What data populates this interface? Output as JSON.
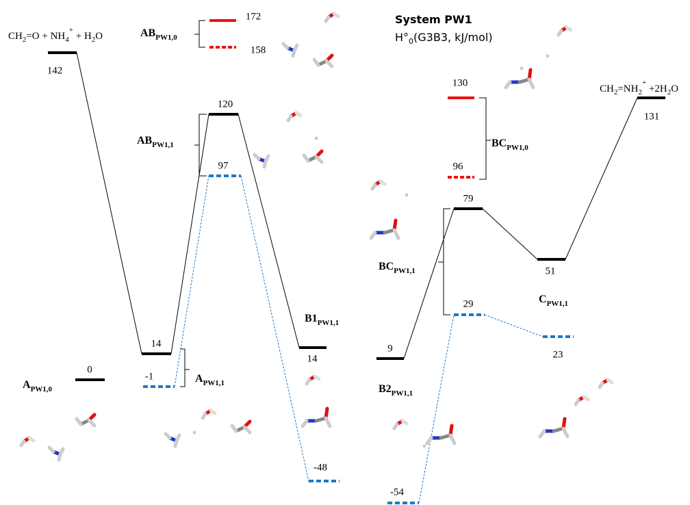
{
  "title": "System PW1",
  "subtitle": [
    {
      "t": "H°"
    },
    {
      "sub": "0"
    },
    {
      "t": "(G3B3, kJ/mol)"
    }
  ],
  "levels": [
    {
      "value": 0,
      "color": "#000000",
      "style": "solid"
    },
    {
      "value": 142,
      "color": "#000000",
      "style": "solid"
    },
    {
      "value": 14,
      "color": "#000000",
      "style": "solid"
    },
    {
      "value": -1,
      "color": "#1f77c4",
      "style": "dashed"
    },
    {
      "value": 120,
      "color": "#000000",
      "style": "solid"
    },
    {
      "value": 97,
      "color": "#1f77c4",
      "style": "dashed"
    },
    {
      "value": 14,
      "color": "#000000",
      "style": "solid"
    },
    {
      "value": -48,
      "color": "#1f77c4",
      "style": "dashed"
    },
    {
      "value": 9,
      "color": "#000000",
      "style": "solid"
    },
    {
      "value": -54,
      "color": "#1f77c4",
      "style": "dashed"
    },
    {
      "value": 79,
      "color": "#000000",
      "style": "solid"
    },
    {
      "value": 29,
      "color": "#1f77c4",
      "style": "dashed"
    },
    {
      "value": 51,
      "color": "#000000",
      "style": "solid"
    },
    {
      "value": 23,
      "color": "#1f77c4",
      "style": "dashed"
    },
    {
      "value": 131,
      "color": "#000000",
      "style": "solid"
    },
    {
      "value": 172,
      "color": "#ee1111",
      "style": "solid"
    },
    {
      "value": 158,
      "color": "#ee1111",
      "style": "dotted"
    },
    {
      "value": 130,
      "color": "#ee1111",
      "style": "solid"
    },
    {
      "value": 96,
      "color": "#ee1111",
      "style": "dotted"
    }
  ],
  "states": [
    {
      "main": "A",
      "sub": "PW1,0"
    },
    {
      "main": "A",
      "sub": "PW1,1"
    },
    {
      "main": "AB",
      "sub": "PW1,0"
    },
    {
      "main": "AB",
      "sub": "PW1,1"
    },
    {
      "main": "B1",
      "sub": "PW1,1"
    },
    {
      "main": "B2",
      "sub": "PW1,1"
    },
    {
      "main": "BC",
      "sub": "PW1,0"
    },
    {
      "main": "BC",
      "sub": "PW1,1"
    },
    {
      "main": "C",
      "sub": "PW1,1"
    }
  ],
  "formulas": [
    [
      {
        "t": "CH"
      },
      {
        "sub": "2"
      },
      {
        "t": "=O + NH"
      },
      {
        "sub": "4"
      },
      {
        "sup": "+"
      },
      {
        "t": " + H"
      },
      {
        "sub": "2"
      },
      {
        "t": "O"
      }
    ],
    [
      {
        "t": "CH"
      },
      {
        "sub": "2"
      },
      {
        "t": "=NH"
      },
      {
        "sub": "2"
      },
      {
        "sup": "+"
      },
      {
        "t": " +2H"
      },
      {
        "sub": "2"
      },
      {
        "t": "O"
      }
    ]
  ]
}
